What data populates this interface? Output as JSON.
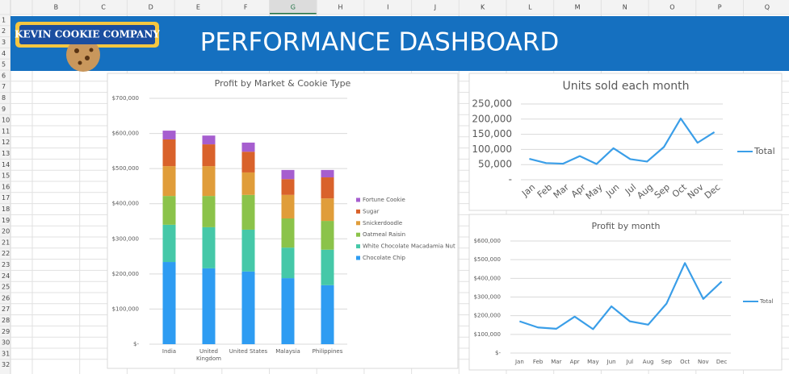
{
  "spreadsheet": {
    "columns": [
      "B",
      "C",
      "D",
      "E",
      "F",
      "G",
      "H",
      "I",
      "J",
      "K",
      "L",
      "M",
      "N",
      "O",
      "P",
      "Q"
    ],
    "rows": [
      1,
      2,
      3,
      4,
      5,
      6,
      7,
      8,
      9,
      10,
      11,
      12,
      13,
      14,
      15,
      16,
      17,
      18,
      19,
      20,
      21,
      22,
      23,
      24,
      25,
      26,
      27,
      28,
      29,
      30,
      31,
      32
    ]
  },
  "banner": {
    "logo": "KEVIN COOKIE COMPANY",
    "title": "PERFORMANCE DASHBOARD"
  },
  "chart_data": [
    {
      "type": "bar",
      "stacked": true,
      "title": "Profit by Market & Cookie Type",
      "categories": [
        "India",
        "United Kingdom",
        "United States",
        "Malaysia",
        "Philippines"
      ],
      "series": [
        {
          "name": "Chocolate Chip",
          "color": "#2e9cf2",
          "values": [
            234000,
            216000,
            207000,
            188000,
            168000
          ]
        },
        {
          "name": "White Chocolate Macadamia Nut",
          "color": "#45c8a8",
          "values": [
            106000,
            117000,
            119000,
            87000,
            101000
          ]
        },
        {
          "name": "Oatmeal Raisin",
          "color": "#8bc34a",
          "values": [
            82000,
            89000,
            99000,
            83000,
            82000
          ]
        },
        {
          "name": "Snickerdoodle",
          "color": "#e09d3a",
          "values": [
            85000,
            85000,
            64000,
            67000,
            64000
          ]
        },
        {
          "name": "Sugar",
          "color": "#d9622b",
          "values": [
            76000,
            62000,
            59000,
            45000,
            60000
          ]
        },
        {
          "name": "Fortune Cookie",
          "color": "#a65ecf",
          "values": [
            25000,
            25000,
            26000,
            26000,
            21000
          ]
        }
      ],
      "ylim": [
        0,
        700000
      ],
      "yticks": [
        {
          "value": 0,
          "label": "$-"
        },
        {
          "value": 100000,
          "label": "$100,000"
        },
        {
          "value": 200000,
          "label": "$200,000"
        },
        {
          "value": 300000,
          "label": "$300,000"
        },
        {
          "value": 400000,
          "label": "$400,000"
        },
        {
          "value": 500000,
          "label": "$500,000"
        },
        {
          "value": 600000,
          "label": "$600,000"
        },
        {
          "value": 700000,
          "label": "$700,000"
        }
      ],
      "grid": true,
      "legend": "right"
    },
    {
      "type": "line",
      "title": "Units sold each month",
      "categories": [
        "Jan",
        "Feb",
        "Mar",
        "Apr",
        "May",
        "Jun",
        "Jul",
        "Aug",
        "Sep",
        "Oct",
        "Nov",
        "Dec"
      ],
      "series": [
        {
          "name": "Total",
          "color": "#3a9ee8",
          "values": [
            69000,
            55000,
            53000,
            78000,
            52000,
            104000,
            68000,
            60000,
            108000,
            202000,
            122000,
            157000
          ]
        }
      ],
      "ylim": [
        0,
        250000
      ],
      "yticks": [
        {
          "value": 0,
          "label": "-"
        },
        {
          "value": 50000,
          "label": "50,000"
        },
        {
          "value": 100000,
          "label": "100,000"
        },
        {
          "value": 150000,
          "label": "150,000"
        },
        {
          "value": 200000,
          "label": "200,000"
        },
        {
          "value": 250000,
          "label": "250,000"
        }
      ],
      "grid": true,
      "legend": "right"
    },
    {
      "type": "line",
      "title": "Profit by month",
      "categories": [
        "Jan",
        "Feb",
        "Mar",
        "Apr",
        "May",
        "Jun",
        "Jul",
        "Aug",
        "Sep",
        "Oct",
        "Nov",
        "Dec"
      ],
      "series": [
        {
          "name": "Total",
          "color": "#3a9ee8",
          "values": [
            170000,
            137000,
            130000,
            195000,
            128000,
            250000,
            170000,
            152000,
            265000,
            482000,
            290000,
            383000
          ]
        }
      ],
      "ylim": [
        0,
        600000
      ],
      "yticks": [
        {
          "value": 0,
          "label": "$-"
        },
        {
          "value": 100000,
          "label": "$100,000"
        },
        {
          "value": 200000,
          "label": "$200,000"
        },
        {
          "value": 300000,
          "label": "$300,000"
        },
        {
          "value": 400000,
          "label": "$400,000"
        },
        {
          "value": 500000,
          "label": "$500,000"
        },
        {
          "value": 600000,
          "label": "$600,000"
        }
      ],
      "grid": true,
      "legend": "right"
    }
  ]
}
